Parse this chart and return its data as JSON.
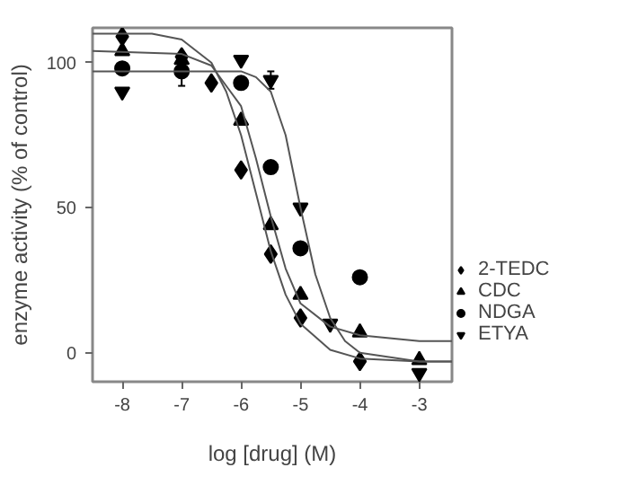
{
  "chart_data": {
    "type": "scatter",
    "xlabel": "log [drug] (M)",
    "ylabel": "enzyme activity (% of control)",
    "xlim": [
      -8.5,
      -2.45
    ],
    "ylim": [
      -10,
      112
    ],
    "xticks": [
      -8,
      -7,
      -6,
      -5,
      -4,
      -3
    ],
    "yticks": [
      0,
      50,
      100
    ],
    "grid": false,
    "legend": "right",
    "series": [
      {
        "name": "2-TEDC",
        "color": "#000000",
        "marker": "diamond",
        "x": [
          -8,
          -7,
          -6.5,
          -6,
          -5.5,
          -5,
          -4
        ],
        "values": [
          109,
          102,
          93,
          63,
          34,
          12,
          -3
        ]
      },
      {
        "name": "CDC",
        "color": "#000000",
        "marker": "triangle",
        "x": [
          -8,
          -7,
          -6,
          -5.5,
          -5,
          -4,
          -3
        ],
        "values": [
          104,
          101,
          80,
          44,
          20,
          7,
          -2.5
        ]
      },
      {
        "name": "NDGA",
        "color": "#000000",
        "marker": "circle",
        "x": [
          -8,
          -7,
          -6,
          -5.5,
          -5,
          -4
        ],
        "values": [
          98,
          97,
          93,
          64,
          36,
          26
        ],
        "errors": [
          null,
          5,
          null,
          null,
          null,
          null
        ]
      },
      {
        "name": "ETYA",
        "color": "#000000",
        "x": [
          -8,
          -6,
          -5.5,
          -5,
          -4.5,
          -3
        ],
        "values": [
          90,
          101,
          94,
          50,
          10,
          -7
        ],
        "errors": [
          null,
          null,
          3,
          null,
          null,
          null
        ]
      },
      {
        "type": "line",
        "color": "#555555",
        "x": [
          -8.5,
          -7.5,
          -7,
          -6.5,
          -6.25,
          -6,
          -5.75,
          -5.5,
          -5.25,
          -5,
          -4.5,
          -4,
          -3,
          -2.45
        ],
        "values": [
          110,
          110,
          108,
          100,
          90,
          75,
          55,
          35,
          20,
          10,
          1,
          -2,
          -3,
          -3
        ]
      },
      {
        "type": "line",
        "color": "#555555",
        "x": [
          -8.5,
          -7,
          -6.5,
          -6,
          -5.75,
          -5.5,
          -5.25,
          -5,
          -4.5,
          -4,
          -3,
          -2.45
        ],
        "values": [
          104,
          103,
          99,
          85,
          67,
          47,
          29,
          17,
          9,
          6,
          4,
          4
        ]
      },
      {
        "type": "line",
        "color": "#555555",
        "x": [
          -8.5,
          -6,
          -5.75,
          -5.5,
          -5.25,
          -5,
          -4.75,
          -4.5,
          -4.25,
          -4,
          -3,
          -2.45
        ],
        "values": [
          97,
          97,
          95,
          90,
          75,
          50,
          27,
          12,
          4,
          0,
          -3,
          -3
        ]
      }
    ]
  }
}
